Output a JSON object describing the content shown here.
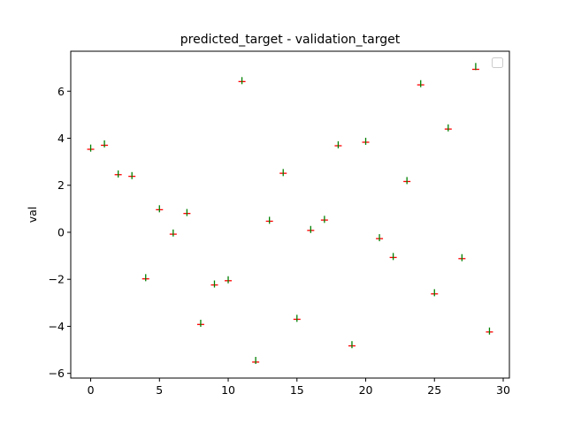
{
  "chart_data": {
    "type": "scatter",
    "title": "predicted_target - validation_target",
    "xlabel": "",
    "ylabel": "val",
    "xlim": [
      -1.45,
      30.45
    ],
    "ylim": [
      -6.2,
      7.7
    ],
    "xticks": [
      0,
      5,
      10,
      15,
      20,
      25,
      30
    ],
    "yticks": [
      -6,
      -4,
      -2,
      0,
      2,
      4,
      6
    ],
    "grid": false,
    "legend": "top-right (empty)",
    "series": [
      {
        "marker": "_",
        "color": "#ff0000",
        "x": [
          0,
          1,
          2,
          3,
          4,
          5,
          6,
          7,
          8,
          9,
          10,
          11,
          12,
          13,
          14,
          15,
          16,
          17,
          18,
          19,
          20,
          21,
          22,
          23,
          24,
          25,
          26,
          27,
          28,
          29
        ],
        "values": [
          3.53,
          3.7,
          2.45,
          2.38,
          -1.98,
          0.96,
          -0.08,
          0.8,
          -3.92,
          -2.24,
          -2.06,
          6.41,
          -5.52,
          0.47,
          2.51,
          -3.7,
          0.08,
          0.52,
          3.68,
          -4.83,
          3.83,
          -0.27,
          -1.07,
          2.16,
          6.27,
          -2.62,
          4.39,
          -1.12,
          6.93,
          -4.24
        ]
      },
      {
        "marker": "|",
        "color": "#008000",
        "x": [
          0,
          1,
          2,
          3,
          4,
          5,
          6,
          7,
          8,
          9,
          10,
          11,
          12,
          13,
          14,
          15,
          16,
          17,
          18,
          19,
          20,
          21,
          22,
          23,
          24,
          25,
          26,
          27,
          28,
          29
        ],
        "values": [
          3.58,
          3.76,
          2.48,
          2.41,
          -1.93,
          1.0,
          -0.03,
          0.84,
          -3.87,
          -2.2,
          -2.02,
          6.45,
          -5.45,
          0.51,
          2.54,
          -3.66,
          0.12,
          0.55,
          3.72,
          -4.78,
          3.87,
          -0.23,
          -1.03,
          2.2,
          6.32,
          -2.57,
          4.44,
          -1.08,
          7.05,
          -4.2
        ]
      }
    ]
  }
}
